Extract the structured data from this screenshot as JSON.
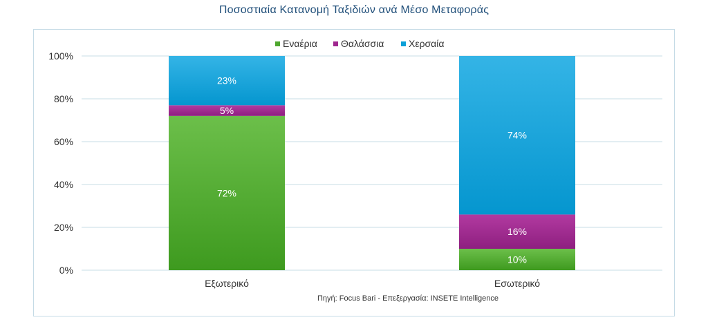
{
  "chart_data": {
    "type": "bar",
    "stacked": true,
    "title": "Ποσοστιαία Κατανομή Ταξιδιών ανά Μέσο Μεταφοράς",
    "categories": [
      "Εξωτερικό",
      "Εσωτερικό"
    ],
    "series": [
      {
        "name": "Εναέρια",
        "values": [
          72,
          10
        ],
        "labels": [
          "72%",
          "10%"
        ],
        "color": "#4ea72e"
      },
      {
        "name": "Θαλάσσια",
        "values": [
          5,
          16
        ],
        "labels": [
          "5%",
          "16%"
        ],
        "color": "#a0278f"
      },
      {
        "name": "Χερσαία",
        "values": [
          23,
          74
        ],
        "labels": [
          "23%",
          "74%"
        ],
        "color": "#0aa0d8"
      }
    ],
    "ylim": [
      0,
      100
    ],
    "yticks": [
      0,
      20,
      40,
      60,
      80,
      100
    ],
    "ytick_labels": [
      "0%",
      "20%",
      "40%",
      "60%",
      "80%",
      "100%"
    ],
    "grid": true,
    "legend": "top-center",
    "source": "Πηγή: Focus Bari - Επεξεργασία: INSETE Intelligence"
  }
}
